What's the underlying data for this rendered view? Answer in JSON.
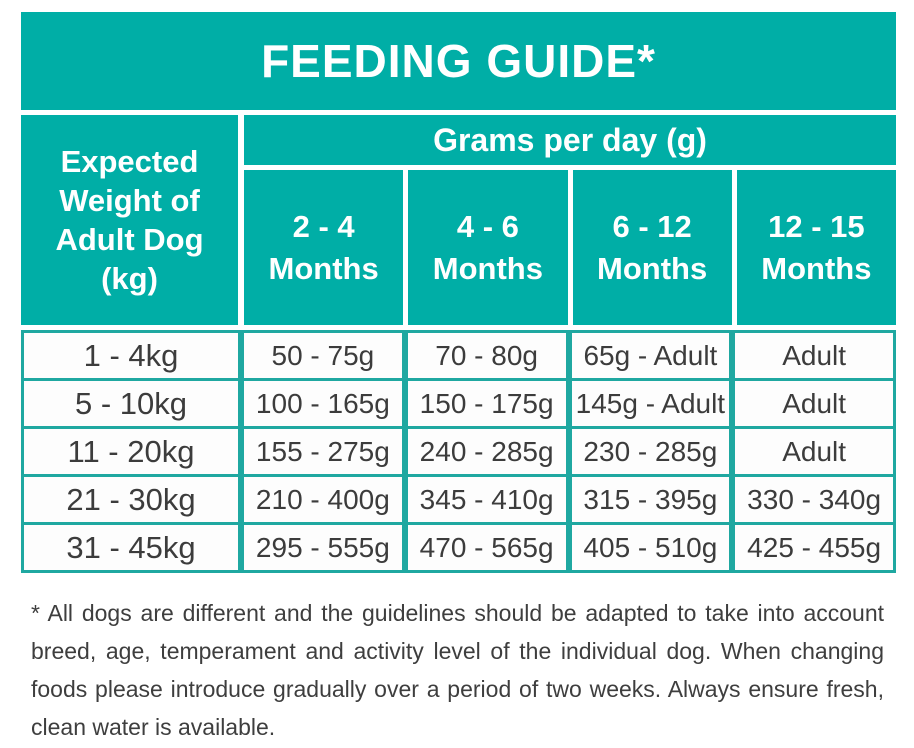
{
  "title": "FEEDING GUIDE*",
  "colors": {
    "teal_fill": "#00AEA6",
    "teal_border": "#1FA8A1",
    "text_dark": "#3C3C3C",
    "header_text": "#FFFFFF"
  },
  "table": {
    "row_header": {
      "lines": [
        "Expected",
        "Weight of",
        "Adult Dog",
        "(kg)"
      ]
    },
    "group_header": "Grams per day (g)",
    "month_headers": [
      {
        "range": "2 - 4",
        "unit": "Months"
      },
      {
        "range": "4 - 6",
        "unit": "Months"
      },
      {
        "range": "6 - 12",
        "unit": "Months"
      },
      {
        "range": "12 - 15",
        "unit": "Months"
      }
    ],
    "rows": [
      {
        "weight": "1 - 4kg",
        "values": [
          "50 - 75g",
          "70 - 80g",
          "65g - Adult",
          "Adult"
        ]
      },
      {
        "weight": "5 - 10kg",
        "values": [
          "100 - 165g",
          "150 - 175g",
          "145g - Adult",
          "Adult"
        ]
      },
      {
        "weight": "11 - 20kg",
        "values": [
          "155 - 275g",
          "240 - 285g",
          "230 - 285g",
          "Adult"
        ]
      },
      {
        "weight": "21 - 30kg",
        "values": [
          "210 - 400g",
          "345 - 410g",
          "315 - 395g",
          "330 - 340g"
        ]
      },
      {
        "weight": "31 - 45kg",
        "values": [
          "295 - 555g",
          "470 - 565g",
          "405 - 510g",
          "425 - 455g"
        ]
      }
    ]
  },
  "footnote": "* All dogs are different and the guidelines should be adapted to take into account breed, age, temperament and activity level of the individual dog. When changing foods please introduce gradually over a period of two weeks. Always ensure fresh, clean water is available."
}
